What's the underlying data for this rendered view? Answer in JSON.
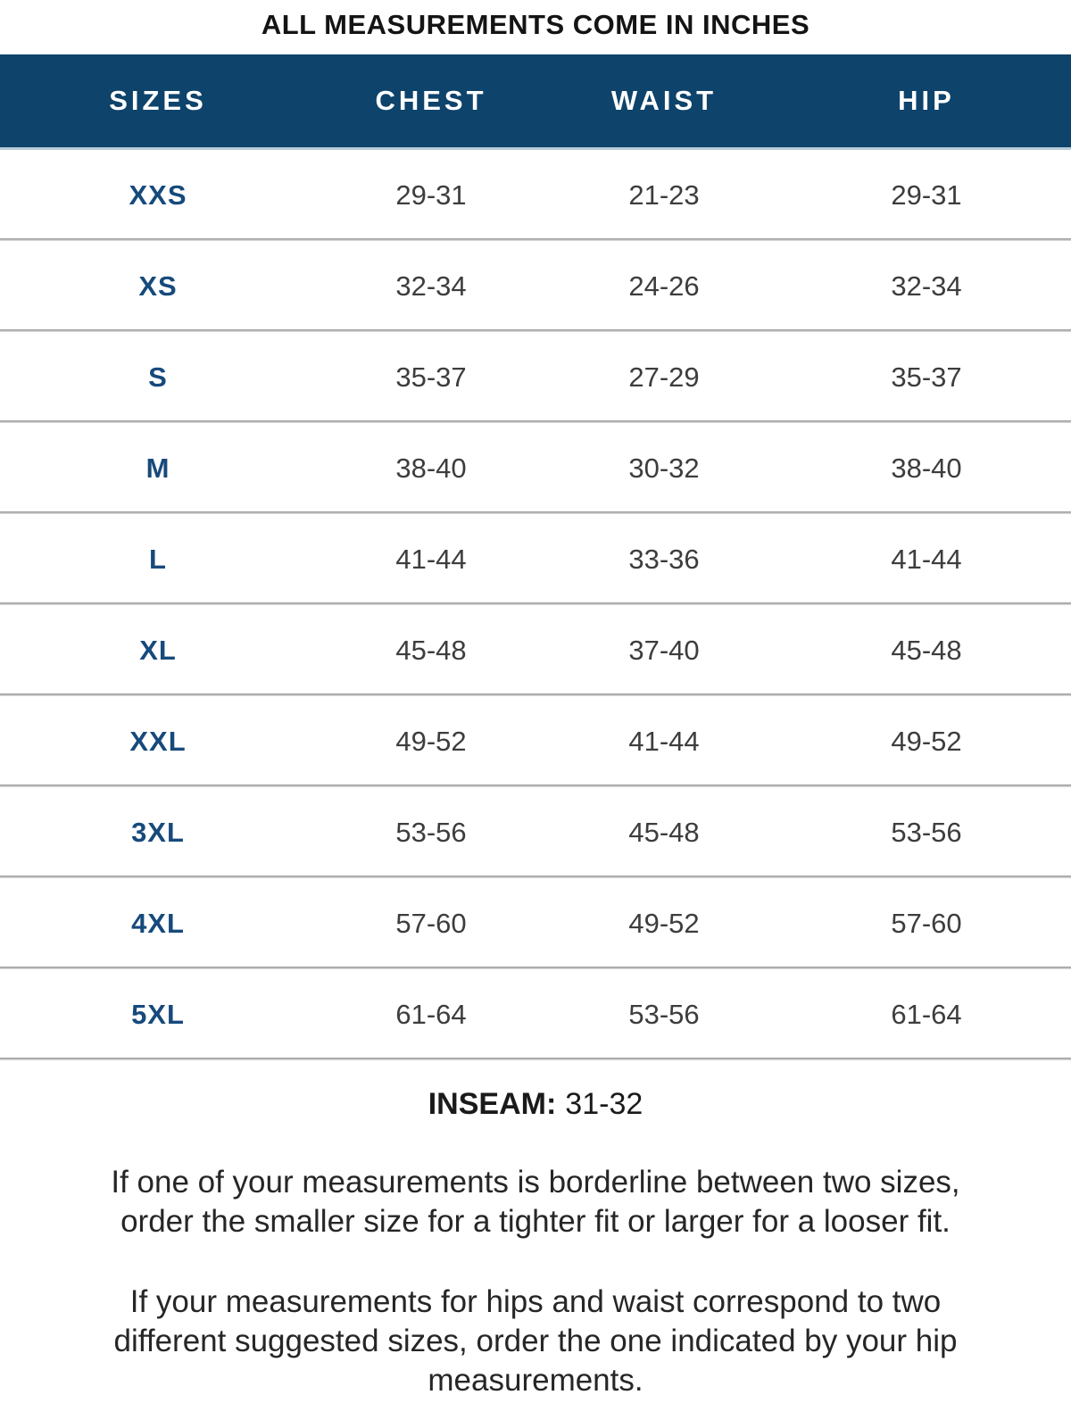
{
  "title": "ALL MEASUREMENTS COME IN INCHES",
  "colors": {
    "header_background": "#0e436b",
    "header_text": "#ffffff",
    "size_label_text": "#174a7c",
    "value_text": "#3d3d3d",
    "divider": "#9b9b9b"
  },
  "table": {
    "columns": [
      "SIZES",
      "CHEST",
      "WAIST",
      "HIP"
    ],
    "rows": [
      {
        "size": "XXS",
        "chest": "29-31",
        "waist": "21-23",
        "hip": "29-31"
      },
      {
        "size": "XS",
        "chest": "32-34",
        "waist": "24-26",
        "hip": "32-34"
      },
      {
        "size": "S",
        "chest": "35-37",
        "waist": "27-29",
        "hip": "35-37"
      },
      {
        "size": "M",
        "chest": "38-40",
        "waist": "30-32",
        "hip": "38-40"
      },
      {
        "size": "L",
        "chest": "41-44",
        "waist": "33-36",
        "hip": "41-44"
      },
      {
        "size": "XL",
        "chest": "45-48",
        "waist": "37-40",
        "hip": "45-48"
      },
      {
        "size": "XXL",
        "chest": "49-52",
        "waist": "41-44",
        "hip": "49-52"
      },
      {
        "size": "3XL",
        "chest": "53-56",
        "waist": "45-48",
        "hip": "53-56"
      },
      {
        "size": "4XL",
        "chest": "57-60",
        "waist": "49-52",
        "hip": "57-60"
      },
      {
        "size": "5XL",
        "chest": "61-64",
        "waist": "53-56",
        "hip": "61-64"
      }
    ]
  },
  "inseam": {
    "label": "INSEAM:",
    "value": "31-32"
  },
  "notes": [
    {
      "lines": [
        "If one of your measurements is borderline between two sizes,",
        "order the smaller size for a tighter fit or larger for a looser fit."
      ]
    },
    {
      "lines": [
        "If your measurements for hips and waist correspond to two",
        "different suggested sizes, order the one indicated by your hip",
        "measurements."
      ]
    }
  ]
}
